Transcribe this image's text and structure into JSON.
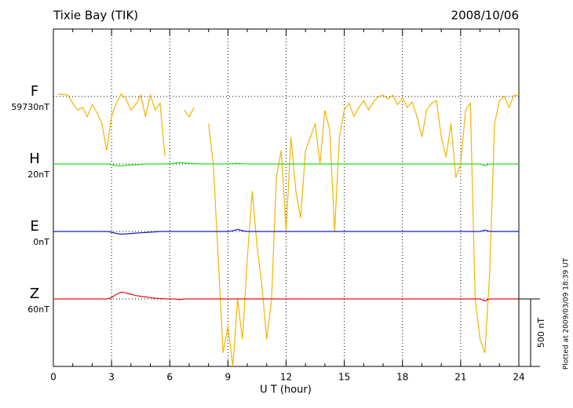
{
  "chart_data": {
    "type": "line",
    "title": "Tixie Bay (TIK)",
    "date": "2008/10/06",
    "xlabel": "U T (hour)",
    "note": "Plotted at 2009/03/09 18:39 UT",
    "scale_bar": {
      "value": 500,
      "label": "500 nT"
    },
    "xlim": [
      0,
      24
    ],
    "xticks": [
      0,
      3,
      6,
      9,
      12,
      15,
      18,
      21,
      24
    ],
    "xminorticks": [
      1,
      2,
      4,
      5,
      7,
      8,
      10,
      11,
      13,
      14,
      16,
      17,
      19,
      20,
      22,
      23
    ],
    "ylim": [
      -2000,
      500
    ],
    "grid": true,
    "x": [
      0,
      0.25,
      0.5,
      0.75,
      1,
      1.25,
      1.5,
      1.75,
      2,
      2.25,
      2.5,
      2.75,
      3,
      3.25,
      3.5,
      3.75,
      4,
      4.25,
      4.5,
      4.75,
      5,
      5.25,
      5.5,
      5.75,
      6,
      6.25,
      6.5,
      6.75,
      7,
      7.25,
      7.5,
      7.75,
      8,
      8.25,
      8.5,
      8.75,
      9,
      9.25,
      9.5,
      9.75,
      10,
      10.25,
      10.5,
      10.75,
      11,
      11.25,
      11.5,
      11.75,
      12,
      12.25,
      12.5,
      12.75,
      13,
      13.25,
      13.5,
      13.75,
      14,
      14.25,
      14.5,
      14.75,
      15,
      15.25,
      15.5,
      15.75,
      16,
      16.25,
      16.5,
      16.75,
      17,
      17.25,
      17.5,
      17.75,
      18,
      18.25,
      18.5,
      18.75,
      19,
      19.25,
      19.5,
      19.75,
      20,
      20.25,
      20.5,
      20.75,
      21,
      21.25,
      21.5,
      21.75,
      22,
      22.25,
      22.5,
      22.75,
      23,
      23.25,
      23.5,
      23.75,
      24
    ],
    "series": [
      {
        "name": "F",
        "baseline_label": "59730nT",
        "color": "#f5b400",
        "values": [
          null,
          15,
          15,
          10,
          -50,
          -100,
          -80,
          -150,
          -60,
          -120,
          -200,
          -400,
          -150,
          -50,
          20,
          -20,
          -100,
          -60,
          10,
          -150,
          10,
          -100,
          -50,
          -440,
          null,
          null,
          null,
          -100,
          -150,
          -80,
          null,
          null,
          -200,
          -500,
          -1200,
          -1900,
          -1700,
          -2000,
          -1500,
          -1800,
          -1200,
          -700,
          -1100,
          -1400,
          -1800,
          -1500,
          -600,
          -400,
          -1000,
          -300,
          -700,
          -900,
          -400,
          -300,
          -200,
          -500,
          -100,
          -250,
          -1000,
          -300,
          -100,
          -50,
          -150,
          -80,
          -30,
          -100,
          -40,
          0,
          10,
          -20,
          10,
          -60,
          -10,
          -80,
          -40,
          -150,
          -300,
          -100,
          -50,
          -30,
          -300,
          -450,
          -200,
          -600,
          -500,
          -100,
          -50,
          -1500,
          -1800,
          -1900,
          -1300,
          -200,
          -30,
          0,
          -80,
          10,
          10
        ]
      },
      {
        "name": "H",
        "baseline_label": "20nT",
        "color": "#22dd22",
        "values": [
          0,
          0,
          0,
          0,
          0,
          0,
          0,
          0,
          0,
          0,
          0,
          0,
          -5,
          -12,
          -15,
          -10,
          -8,
          -5,
          -3,
          0,
          0,
          0,
          0,
          0,
          3,
          6,
          10,
          8,
          5,
          3,
          2,
          0,
          0,
          2,
          0,
          0,
          0,
          3,
          5,
          2,
          0,
          0,
          0,
          0,
          0,
          0,
          0,
          0,
          0,
          0,
          0,
          0,
          0,
          0,
          0,
          0,
          0,
          0,
          0,
          0,
          0,
          0,
          0,
          0,
          0,
          0,
          0,
          0,
          0,
          0,
          0,
          0,
          0,
          0,
          0,
          0,
          0,
          0,
          0,
          0,
          0,
          0,
          0,
          0,
          0,
          0,
          0,
          0,
          0,
          -12,
          0,
          0,
          0,
          0,
          0,
          0,
          0
        ]
      },
      {
        "name": "E",
        "baseline_label": "0nT",
        "color": "#1020c0",
        "values": [
          0,
          0,
          0,
          0,
          0,
          0,
          0,
          0,
          0,
          0,
          0,
          0,
          -5,
          -15,
          -20,
          -18,
          -15,
          -12,
          -10,
          -8,
          -5,
          -3,
          0,
          0,
          0,
          0,
          0,
          0,
          0,
          0,
          0,
          0,
          0,
          0,
          0,
          0,
          0,
          5,
          15,
          5,
          0,
          0,
          0,
          0,
          0,
          0,
          0,
          0,
          0,
          0,
          0,
          0,
          0,
          0,
          0,
          0,
          0,
          0,
          0,
          0,
          0,
          0,
          0,
          0,
          0,
          0,
          0,
          0,
          0,
          0,
          0,
          0,
          0,
          0,
          0,
          0,
          0,
          0,
          0,
          0,
          0,
          0,
          0,
          0,
          0,
          0,
          0,
          0,
          0,
          10,
          0,
          0,
          0,
          0,
          0,
          0,
          0
        ]
      },
      {
        "name": "Z",
        "baseline_label": "60nT",
        "color": "#e01010",
        "values": [
          0,
          0,
          0,
          0,
          0,
          0,
          0,
          0,
          0,
          0,
          0,
          0,
          10,
          35,
          50,
          45,
          35,
          25,
          20,
          15,
          10,
          5,
          3,
          0,
          0,
          0,
          -5,
          0,
          0,
          0,
          0,
          0,
          0,
          0,
          0,
          0,
          0,
          0,
          0,
          0,
          0,
          0,
          0,
          0,
          0,
          0,
          0,
          0,
          0,
          0,
          0,
          0,
          0,
          0,
          0,
          0,
          0,
          0,
          0,
          0,
          0,
          0,
          0,
          0,
          0,
          0,
          0,
          0,
          0,
          0,
          0,
          0,
          0,
          0,
          0,
          0,
          0,
          0,
          0,
          0,
          0,
          0,
          0,
          0,
          0,
          0,
          0,
          0,
          0,
          -15,
          0,
          0,
          0,
          0,
          0,
          0,
          0
        ]
      }
    ]
  }
}
